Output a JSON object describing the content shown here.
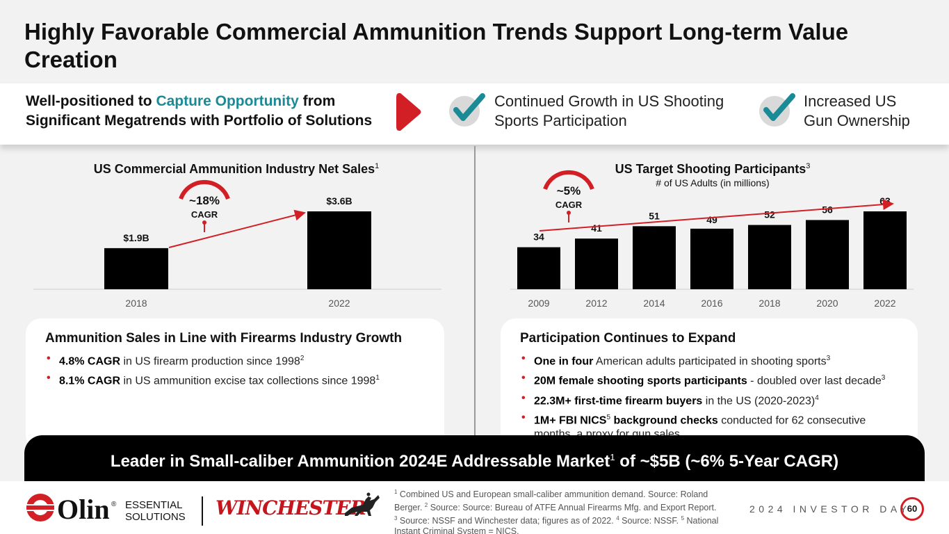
{
  "header": {
    "title": "Highly Favorable Commercial Ammunition Trends Support Long-term Value Creation"
  },
  "banner": {
    "lead_before": "Well-positioned to ",
    "lead_accent": "Capture Opportunity",
    "lead_after": " from Significant Megatrends with Portfolio of Solutions",
    "point1": "Continued Growth in US Shooting Sports Participation",
    "point2": "Increased US Gun Ownership",
    "arrow_icon": "play-arrow-icon",
    "check_icon": "check-icon"
  },
  "colors": {
    "accent_red": "#d21f26",
    "accent_teal": "#1a8a96",
    "bar": "#000000"
  },
  "chart_data": [
    {
      "type": "bar",
      "title": "US Commercial Ammunition Industry Net Sales",
      "title_footnote": "1",
      "categories": [
        "2018",
        "2022"
      ],
      "values": [
        1.9,
        3.6
      ],
      "value_labels": [
        "$1.9B",
        "$3.6B"
      ],
      "ylim": [
        0,
        3.6
      ],
      "annotation": {
        "value": "~18%",
        "label": "CAGR"
      }
    },
    {
      "type": "bar",
      "title": "US Target Shooting Participants",
      "title_footnote": "3",
      "subtitle": "# of US Adults (in millions)",
      "categories": [
        "2009",
        "2012",
        "2014",
        "2016",
        "2018",
        "2020",
        "2022"
      ],
      "values": [
        34,
        41,
        51,
        49,
        52,
        56,
        63
      ],
      "value_labels": [
        "34",
        "41",
        "51",
        "49",
        "52",
        "56",
        "63"
      ],
      "ylim": [
        0,
        63
      ],
      "annotation": {
        "value": "~5%",
        "label": "CAGR"
      }
    }
  ],
  "cards": {
    "left": {
      "title": "Ammunition Sales in Line with Firearms Industry Growth",
      "b1_bold": "4.8% CAGR",
      "b1_text": " in US firearm production since 1998",
      "b1_sup": "2",
      "b2_bold": "8.1% CAGR",
      "b2_text": " in US ammunition excise tax collections since 1998",
      "b2_sup": "1"
    },
    "right": {
      "title": "Participation Continues to Expand",
      "b1_bold": "One in four",
      "b1_text": " American adults participated in shooting sports",
      "b1_sup": "3",
      "b2_bold": "20M female shooting sports participants",
      "b2_text": " - doubled over last decade",
      "b2_sup": "3",
      "b3_bold": "22.3M+ first-time firearm buyers",
      "b3_text": " in the US (2020-2023)",
      "b3_sup": "4",
      "b4_bold": "1M+ FBI NICS",
      "b4_sup": "5",
      "b4_bold2": " background checks",
      "b4_text": " conducted for 62 consecutive months, a proxy for gun sales"
    }
  },
  "leader": {
    "text": "Leader in Small-caliber Ammunition 2024E Addressable Market",
    "sup": "1",
    "text2": " of ~$5B (~6% 5-Year CAGR)"
  },
  "footer": {
    "olin_logo_text": "Olin",
    "registered": "®",
    "essential_line1": "ESSENTIAL",
    "essential_line2": "SOLUTIONS",
    "winchester": "WINCHESTER",
    "horse_icon": "horse-rider-icon",
    "fn1": " Combined US and European small-caliber ammunition demand. Source: Roland Berger. ",
    "fn2": " Source: Source: Bureau of ATFE Annual Firearms Mfg. and Export Report. ",
    "fn3": " Source: NSSF and Winchester data; figures as of 2022. ",
    "fn4": " Source: NSSF. ",
    "fn5": " National Instant Criminal System = NICS.",
    "event": "2024 INVESTOR DAY",
    "page": "60"
  }
}
